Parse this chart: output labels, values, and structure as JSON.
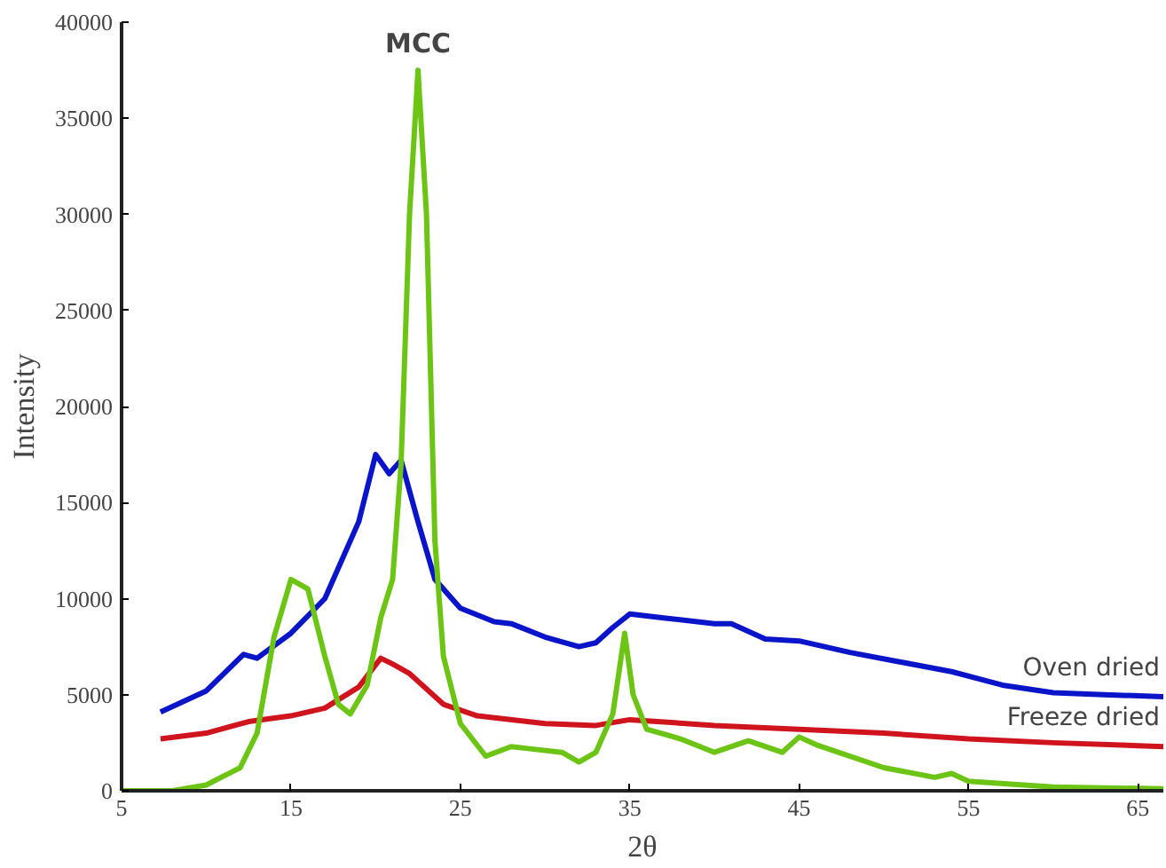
{
  "chart_data": {
    "type": "line",
    "xlabel": "2θ",
    "ylabel": "Intensity",
    "xlim": [
      5,
      66.5
    ],
    "ylim": [
      0,
      40000
    ],
    "xticks": [
      5,
      15,
      25,
      35,
      45,
      55,
      65
    ],
    "yticks": [
      0,
      5000,
      10000,
      15000,
      20000,
      25000,
      30000,
      35000,
      40000
    ],
    "grid": false,
    "marker": "none",
    "line_style": "solid",
    "series": [
      {
        "name": "Oven dried",
        "color": "#0a14c8",
        "x": [
          7.3,
          10,
          12.2,
          13,
          15,
          17,
          19,
          20,
          20.8,
          21.5,
          22.5,
          23.5,
          25,
          27,
          28,
          30,
          32,
          33,
          34,
          35,
          37,
          40,
          41,
          43,
          45,
          48,
          51,
          54,
          57,
          60,
          63,
          66.5
        ],
        "values": [
          4100,
          5200,
          7100,
          6900,
          8200,
          10000,
          14000,
          17500,
          16500,
          17200,
          14000,
          11000,
          9500,
          8800,
          8700,
          8000,
          7500,
          7700,
          8500,
          9200,
          9000,
          8700,
          8700,
          7900,
          7800,
          7200,
          6700,
          6200,
          5500,
          5100,
          5000,
          4900
        ]
      },
      {
        "name": "Freeze dried",
        "color": "#d0141e",
        "x": [
          7.3,
          10,
          12.5,
          15,
          17,
          19,
          20.3,
          21,
          22,
          24,
          26,
          30,
          33,
          35,
          40,
          45,
          50,
          55,
          60,
          66.5
        ],
        "values": [
          2700,
          3000,
          3600,
          3900,
          4300,
          5400,
          6900,
          6600,
          6100,
          4500,
          3900,
          3500,
          3400,
          3700,
          3400,
          3200,
          3000,
          2700,
          2500,
          2300
        ]
      },
      {
        "name": "MCC",
        "color": "#6cc414",
        "x": [
          5,
          8,
          10,
          12,
          13,
          14,
          15,
          16,
          17,
          17.8,
          18.5,
          19.5,
          20.3,
          21,
          21.5,
          22,
          22.5,
          23,
          23.5,
          24,
          25,
          26.5,
          28,
          29,
          31,
          32,
          33,
          34,
          34.7,
          35.2,
          36,
          38,
          40,
          42,
          44,
          45,
          46,
          50,
          53,
          54,
          55,
          60,
          66.5
        ],
        "values": [
          0,
          0,
          300,
          1200,
          3000,
          8000,
          11000,
          10500,
          7000,
          4500,
          4000,
          5500,
          9000,
          11000,
          17000,
          30000,
          37500,
          30000,
          13000,
          7000,
          3500,
          1800,
          2300,
          2200,
          2000,
          1500,
          2000,
          4000,
          8200,
          5000,
          3200,
          2700,
          2000,
          2600,
          2000,
          2800,
          2400,
          1200,
          700,
          900,
          500,
          200,
          100
        ]
      }
    ]
  }
}
